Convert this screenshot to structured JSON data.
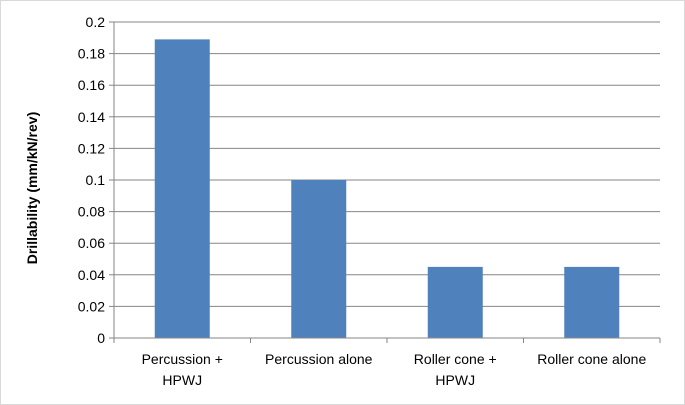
{
  "chart_data": {
    "type": "bar",
    "title": "",
    "xlabel": "",
    "ylabel": "Drillability (mm/kN/rev)",
    "categories": [
      [
        "Percussion +",
        "HPWJ"
      ],
      [
        "Percussion alone"
      ],
      [
        "Roller cone +",
        "HPWJ"
      ],
      [
        "Roller cone alone"
      ]
    ],
    "values": [
      0.189,
      0.1,
      0.045,
      0.045
    ],
    "ylim": [
      0,
      0.2
    ],
    "yticks": [
      "0",
      "0.02",
      "0.04",
      "0.06",
      "0.08",
      "0.1",
      "0.12",
      "0.14",
      "0.16",
      "0.18",
      "0.2"
    ],
    "grid": true,
    "legend": "none",
    "colors": {
      "bar": "#4f81bd",
      "grid": "#868686",
      "axis": "#868686"
    }
  }
}
